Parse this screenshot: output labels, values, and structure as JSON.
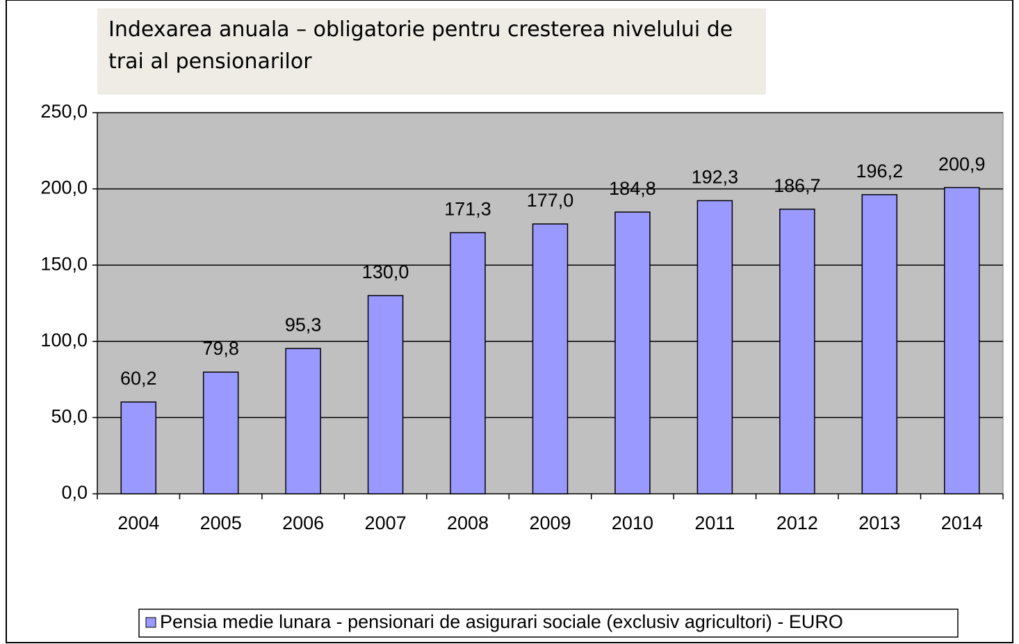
{
  "chart_data": {
    "type": "bar",
    "title": "Indexarea anuala – obligatorie pentru cresterea nivelului de trai al pensionarilor",
    "categories": [
      "2004",
      "2005",
      "2006",
      "2007",
      "2008",
      "2009",
      "2010",
      "2011",
      "2012",
      "2013",
      "2014"
    ],
    "series": [
      {
        "name": "Pensia medie lunara - pensionari de asigurari sociale (exclusiv agricultori) - EURO",
        "color": "#9999ff",
        "values": [
          60.2,
          79.8,
          95.3,
          130.0,
          171.3,
          177.0,
          184.8,
          192.3,
          186.7,
          196.2,
          200.9
        ],
        "value_labels": [
          "60,2",
          "79,8",
          "95,3",
          "130,0",
          "171,3",
          "177,0",
          "184,8",
          "192,3",
          "186,7",
          "196,2",
          "200,9"
        ]
      }
    ],
    "ylim": [
      0,
      250
    ],
    "yticks": [
      {
        "value": 0,
        "label": "0,0"
      },
      {
        "value": 50,
        "label": "50,0"
      },
      {
        "value": 100,
        "label": "100,0"
      },
      {
        "value": 150,
        "label": "150,0"
      },
      {
        "value": 200,
        "label": "200,0"
      },
      {
        "value": 250,
        "label": "250,0"
      }
    ],
    "grid": true
  }
}
